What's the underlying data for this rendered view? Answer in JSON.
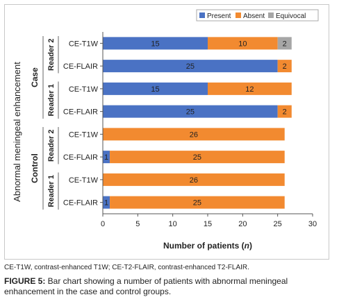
{
  "chart_data": {
    "type": "bar",
    "orientation": "horizontal",
    "stacked": true,
    "title": "",
    "xlabel": "Number of patients (n)",
    "xlabel_main": "Number of patients (",
    "xlabel_var": "n",
    "xlabel_end": ")",
    "ylabel": "Abnormal meningeal enhancement",
    "xlim": [
      0,
      30
    ],
    "xticks": [
      "0",
      "5",
      "10",
      "15",
      "20",
      "25",
      "30"
    ],
    "xtick_values": [
      0,
      5,
      10,
      15,
      20,
      25,
      30
    ],
    "grid": false,
    "legend_position": "top-right",
    "series": [
      {
        "name": "Present",
        "color": "#4a72c4"
      },
      {
        "name": "Absent",
        "color": "#f28a30"
      },
      {
        "name": "Equivocal",
        "color": "#a6a6a6"
      }
    ],
    "rows": [
      {
        "group": "Case",
        "reader": "Reader 2",
        "category": "CE-T1W",
        "values": [
          15,
          10,
          2
        ]
      },
      {
        "group": "Case",
        "reader": "Reader 2",
        "category": "CE-FLAIR",
        "values": [
          25,
          2,
          0
        ]
      },
      {
        "group": "Case",
        "reader": "Reader 1",
        "category": "CE-T1W",
        "values": [
          15,
          12,
          0
        ]
      },
      {
        "group": "Case",
        "reader": "Reader 1",
        "category": "CE-FLAIR",
        "values": [
          25,
          2,
          0
        ]
      },
      {
        "group": "Control",
        "reader": "Reader 2",
        "category": "CE-T1W",
        "values": [
          0,
          26,
          0
        ]
      },
      {
        "group": "Control",
        "reader": "Reader 2",
        "category": "CE-FLAIR",
        "values": [
          1,
          25,
          0
        ]
      },
      {
        "group": "Control",
        "reader": "Reader 1",
        "category": "CE-T1W",
        "values": [
          0,
          26,
          0
        ]
      },
      {
        "group": "Control",
        "reader": "Reader 1",
        "category": "CE-FLAIR",
        "values": [
          1,
          25,
          0
        ]
      }
    ],
    "groups": [
      {
        "label": "Case",
        "readers": [
          "Reader 2",
          "Reader 1"
        ]
      },
      {
        "label": "Control",
        "readers": [
          "Reader 2",
          "Reader 1"
        ]
      }
    ]
  },
  "caption": {
    "note": "CE-T1W, contrast-enhanced T1W; CE-T2-FLAIR, contrast-enhanced T2-FLAIR.",
    "figure_label": "FIGURE 5:",
    "figure_text": " Bar chart showing a number of patients with abnormal meningeal enhancement in the case and control groups."
  }
}
